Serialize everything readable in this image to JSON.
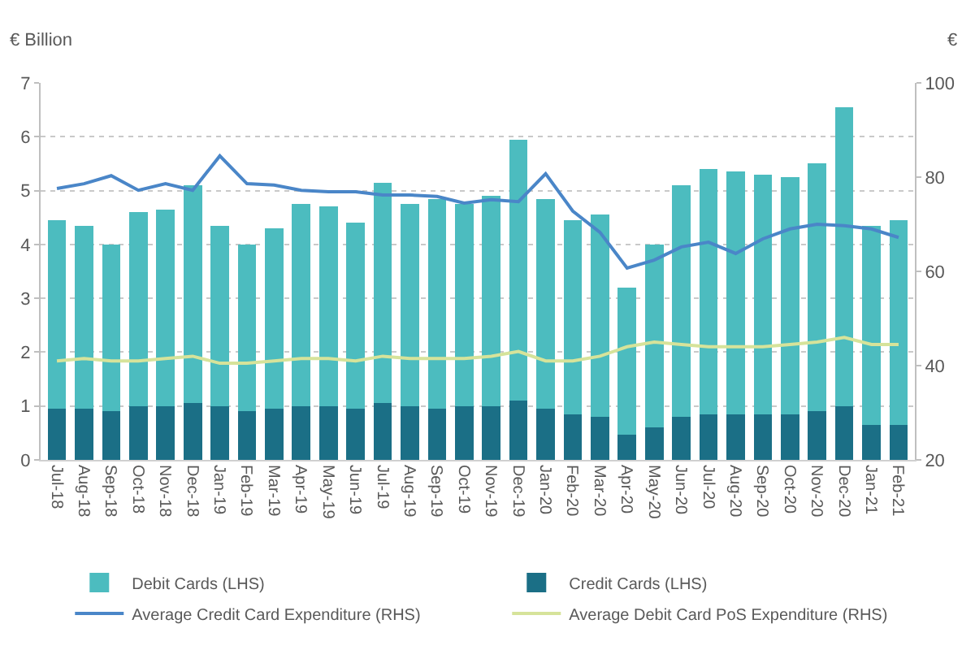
{
  "chart_data": {
    "type": "bar",
    "stacked": true,
    "ylabel": "€ Billion",
    "y2label": "€",
    "categories": [
      "Jul-18",
      "Aug-18",
      "Sep-18",
      "Oct-18",
      "Nov-18",
      "Dec-18",
      "Jan-19",
      "Feb-19",
      "Mar-19",
      "Apr-19",
      "May-19",
      "Jun-19",
      "Jul-19",
      "Aug-19",
      "Sep-19",
      "Oct-19",
      "Nov-19",
      "Dec-19",
      "Jan-20",
      "Feb-20",
      "Mar-20",
      "Apr-20",
      "May-20",
      "Jun-20",
      "Jul-20",
      "Aug-20",
      "Sep-20",
      "Oct-20",
      "Nov-20",
      "Dec-20",
      "Jan-21",
      "Feb-21"
    ],
    "series": [
      {
        "name": "Credit Cards (LHS)",
        "color": "#1b6f86",
        "values": [
          0.95,
          0.95,
          0.9,
          1.0,
          1.0,
          1.05,
          1.0,
          0.9,
          0.95,
          1.0,
          1.0,
          0.95,
          1.05,
          1.0,
          0.95,
          1.0,
          1.0,
          1.1,
          0.95,
          0.85,
          0.8,
          0.47,
          0.6,
          0.8,
          0.85,
          0.85,
          0.85,
          0.85,
          0.9,
          1.0,
          0.65,
          0.65
        ]
      },
      {
        "name": "Debit Cards (LHS)",
        "color": "#4cbcbf",
        "values": [
          3.5,
          3.4,
          3.1,
          3.6,
          3.65,
          4.05,
          3.35,
          3.1,
          3.35,
          3.75,
          3.7,
          3.45,
          4.1,
          3.75,
          3.9,
          3.75,
          3.9,
          4.85,
          3.9,
          3.6,
          3.75,
          2.73,
          3.4,
          4.3,
          4.55,
          4.5,
          4.45,
          4.4,
          4.6,
          5.55,
          3.7,
          3.8
        ]
      },
      {
        "name": "Average Credit Card Expenditure (RHS)",
        "type": "line",
        "axis": "y2",
        "color": "#4a86c8",
        "values": [
          77.6,
          78.6,
          80.3,
          77.2,
          78.6,
          77.2,
          84.5,
          78.6,
          78.3,
          77.2,
          76.9,
          76.9,
          76.2,
          76.2,
          75.9,
          74.5,
          75.2,
          74.8,
          80.7,
          72.8,
          68.3,
          60.7,
          62.4,
          65.2,
          66.2,
          63.8,
          66.9,
          69.0,
          70.0,
          69.7,
          69.0,
          67.2
        ]
      },
      {
        "name": "Average Debit Card PoS Expenditure (RHS)",
        "type": "line",
        "axis": "y2",
        "color": "#d6e39a",
        "values": [
          41,
          41.5,
          41,
          41,
          41.5,
          42,
          40.5,
          40.5,
          41,
          41.5,
          41.5,
          41,
          42,
          41.5,
          41.5,
          41.5,
          42,
          43,
          41,
          41,
          42,
          44,
          45,
          44.5,
          44,
          44,
          44,
          44.5,
          45,
          46,
          44.5,
          44.5
        ]
      }
    ],
    "ylim": [
      0,
      7
    ],
    "yticks": [
      0,
      1,
      2,
      3,
      4,
      5,
      6,
      7
    ],
    "y2lim": [
      20,
      100
    ],
    "y2ticks": [
      20,
      40,
      60,
      80,
      100
    ],
    "grid": "y",
    "legend": "bottom",
    "marker": "none",
    "line_style": "solid"
  }
}
